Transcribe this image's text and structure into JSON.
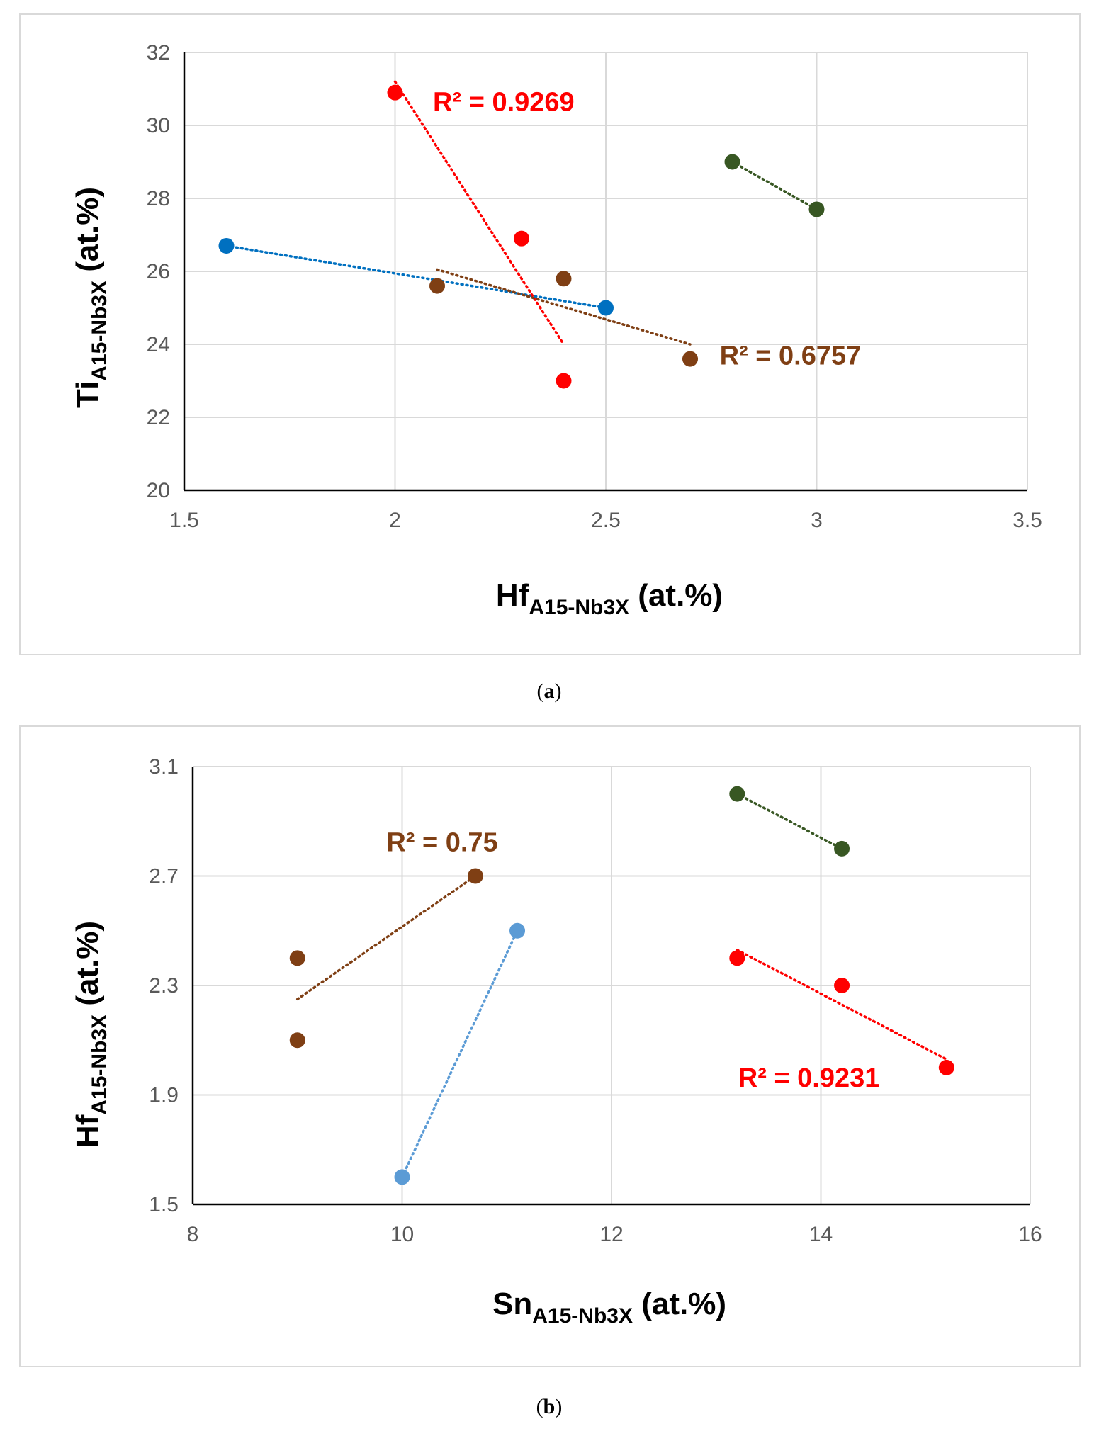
{
  "chart_data": [
    {
      "type": "scatter",
      "caption": {
        "open": "(",
        "letter": "a",
        "close": ")"
      },
      "xlabel": {
        "main": "Hf",
        "sub": "A15-Nb3X",
        "unit": " (at.%)"
      },
      "ylabel": {
        "main": "Ti",
        "sub": "A15-Nb3X",
        "unit": " (at.%)"
      },
      "xlim": [
        1.5,
        3.5
      ],
      "ylim": [
        20,
        32
      ],
      "x_ticks": [
        {
          "value": 1.5,
          "label": "1.5"
        },
        {
          "value": 2,
          "label": "2"
        },
        {
          "value": 2.5,
          "label": "2.5"
        },
        {
          "value": 3,
          "label": "3"
        },
        {
          "value": 3.5,
          "label": "3.5"
        }
      ],
      "y_ticks": [
        {
          "value": 20,
          "label": "20"
        },
        {
          "value": 22,
          "label": "22"
        },
        {
          "value": 24,
          "label": "24"
        },
        {
          "value": 26,
          "label": "26"
        },
        {
          "value": 28,
          "label": "28"
        },
        {
          "value": 30,
          "label": "30"
        },
        {
          "value": 32,
          "label": "32"
        }
      ],
      "grid": true,
      "series": [
        {
          "name": "blue",
          "color": "#0070C0",
          "points": [
            [
              1.6,
              26.7
            ],
            [
              2.5,
              25.0
            ]
          ],
          "trend": [
            [
              1.6,
              26.7
            ],
            [
              2.5,
              25.0
            ]
          ]
        },
        {
          "name": "red",
          "color": "#FF0000",
          "points": [
            [
              2.0,
              30.9
            ],
            [
              2.3,
              26.9
            ],
            [
              2.4,
              23.0
            ]
          ],
          "trend": [
            [
              2.0,
              31.2
            ],
            [
              2.4,
              24.0
            ]
          ]
        },
        {
          "name": "brown",
          "color": "#7F3F14",
          "points": [
            [
              2.1,
              25.6
            ],
            [
              2.4,
              25.8
            ],
            [
              2.7,
              23.6
            ]
          ],
          "trend": [
            [
              2.1,
              26.05
            ],
            [
              2.7,
              24.0
            ]
          ]
        },
        {
          "name": "green",
          "color": "#385723",
          "points": [
            [
              2.8,
              29.0
            ],
            [
              3.0,
              27.7
            ]
          ],
          "trend": [
            [
              2.8,
              29.0
            ],
            [
              3.0,
              27.7
            ]
          ]
        }
      ],
      "annotations": [
        {
          "text": "R² = 0.9269",
          "color": "#FF0000",
          "x": 2.09,
          "y": 30.4
        },
        {
          "text": "R² = 0.6757",
          "color": "#7F3F14",
          "x": 2.77,
          "y": 23.45
        }
      ]
    },
    {
      "type": "scatter",
      "caption": {
        "open": "(",
        "letter": "b",
        "close": ")"
      },
      "xlabel": {
        "main": "Sn",
        "sub": "A15-Nb3X",
        "unit": " (at.%)"
      },
      "ylabel": {
        "main": "Hf",
        "sub": "A15-Nb3X",
        "unit": " (at.%)"
      },
      "xlim": [
        8,
        16
      ],
      "ylim": [
        1.5,
        3.1
      ],
      "x_ticks": [
        {
          "value": 8,
          "label": "8"
        },
        {
          "value": 10,
          "label": "10"
        },
        {
          "value": 12,
          "label": "12"
        },
        {
          "value": 14,
          "label": "14"
        },
        {
          "value": 16,
          "label": "16"
        }
      ],
      "y_ticks": [
        {
          "value": 1.5,
          "label": "1.5"
        },
        {
          "value": 1.9,
          "label": "1.9"
        },
        {
          "value": 2.3,
          "label": "2.3"
        },
        {
          "value": 2.7,
          "label": "2.7"
        },
        {
          "value": 3.1,
          "label": "3.1"
        }
      ],
      "grid": true,
      "series": [
        {
          "name": "brown",
          "color": "#7F3F14",
          "points": [
            [
              9.0,
              2.4
            ],
            [
              9.0,
              2.1
            ],
            [
              10.7,
              2.7
            ]
          ],
          "trend": [
            [
              9.0,
              2.25
            ],
            [
              10.7,
              2.7
            ]
          ]
        },
        {
          "name": "blue",
          "color": "#5B9BD5",
          "points": [
            [
              10.0,
              1.6
            ],
            [
              11.1,
              2.5
            ]
          ],
          "trend": [
            [
              10.0,
              1.6
            ],
            [
              11.1,
              2.5
            ]
          ]
        },
        {
          "name": "green",
          "color": "#385723",
          "points": [
            [
              13.2,
              3.0
            ],
            [
              14.2,
              2.8
            ]
          ],
          "trend": [
            [
              13.2,
              3.0
            ],
            [
              14.2,
              2.8
            ]
          ]
        },
        {
          "name": "red",
          "color": "#FF0000",
          "points": [
            [
              13.2,
              2.4
            ],
            [
              14.2,
              2.3
            ],
            [
              15.2,
              2.0
            ]
          ],
          "trend": [
            [
              13.2,
              2.43
            ],
            [
              15.2,
              2.03
            ]
          ]
        }
      ],
      "annotations": [
        {
          "text": "R² = 0.75",
          "color": "#7F3F14",
          "x": 9.85,
          "y": 2.79
        },
        {
          "text": "R² = 0.9231",
          "color": "#FF0000",
          "x": 13.21,
          "y": 1.93
        }
      ]
    }
  ]
}
